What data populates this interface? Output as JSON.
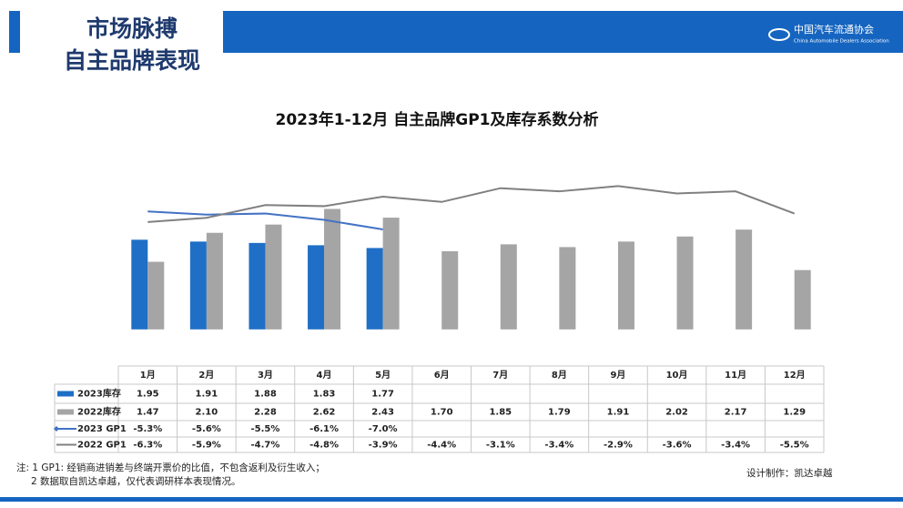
{
  "header": {
    "title_line1": "市场脉搏",
    "title_line2": "自主品牌表现",
    "logo_cn": "中国汽车流通协会",
    "logo_en": "China Automobile Dealers Association"
  },
  "chart_data": {
    "type": "combo",
    "title": "2023年1-12月 自主品牌GP1及库存系数分析",
    "categories": [
      "1月",
      "2月",
      "3月",
      "4月",
      "5月",
      "6月",
      "7月",
      "8月",
      "9月",
      "10月",
      "11月",
      "12月"
    ],
    "ylim": [
      -0.4,
      3.6
    ],
    "y2lim": [
      -18.2,
      -0.8
    ],
    "series": [
      {
        "name": "2023库存",
        "type": "bar",
        "color": "#1f6fc6",
        "values": [
          1.95,
          1.91,
          1.88,
          1.83,
          1.77,
          null,
          null,
          null,
          null,
          null,
          null,
          null
        ],
        "value_labels": [
          "1.95",
          "1.91",
          "1.88",
          "1.83",
          "1.77",
          null,
          null,
          null,
          null,
          null,
          null,
          null
        ]
      },
      {
        "name": "2022库存",
        "type": "bar",
        "color": "#a5a5a5",
        "values": [
          1.47,
          2.1,
          2.28,
          2.62,
          2.43,
          1.7,
          1.85,
          1.79,
          1.91,
          2.02,
          2.17,
          1.29
        ],
        "value_labels": [
          "1.47",
          "2.10",
          "2.28",
          "2.62",
          "2.43",
          "1.70",
          "1.85",
          "1.79",
          "1.91",
          "2.02",
          "2.17",
          "1.29"
        ]
      },
      {
        "name": "2023 GP1",
        "type": "line",
        "axis": "y2",
        "color": "#4472c4",
        "values": [
          -5.3,
          -5.6,
          -5.5,
          -6.1,
          -7.0,
          null,
          null,
          null,
          null,
          null,
          null,
          null
        ],
        "value_labels": [
          "-5.3%",
          "-5.6%",
          "-5.5%",
          "-6.1%",
          "-7.0%",
          null,
          null,
          null,
          null,
          null,
          null,
          null
        ]
      },
      {
        "name": "2022 GP1",
        "type": "line",
        "axis": "y2",
        "color": "#808080",
        "values": [
          -6.3,
          -5.9,
          -4.7,
          -4.8,
          -3.9,
          -4.4,
          -3.1,
          -3.4,
          -2.9,
          -3.6,
          -3.4,
          -5.5
        ],
        "value_labels": [
          "-6.3%",
          "-5.9%",
          "-4.7%",
          "-4.8%",
          "-3.9%",
          "-4.4%",
          "-3.1%",
          "-3.4%",
          "-2.9%",
          "-3.6%",
          "-3.4%",
          "-5.5%"
        ]
      }
    ]
  },
  "footer": {
    "note1": "注: 1  GP1: 经销商进销差与终端开票价的比值，不包含返利及衍生收入；",
    "note2": "2 数据取自凯达卓越，仅代表调研样本表现情况。",
    "credit": "设计制作：凯达卓越"
  }
}
